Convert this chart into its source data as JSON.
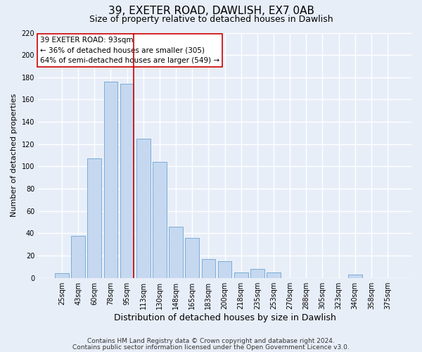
{
  "title": "39, EXETER ROAD, DAWLISH, EX7 0AB",
  "subtitle": "Size of property relative to detached houses in Dawlish",
  "xlabel": "Distribution of detached houses by size in Dawlish",
  "ylabel": "Number of detached properties",
  "bar_labels": [
    "25sqm",
    "43sqm",
    "60sqm",
    "78sqm",
    "95sqm",
    "113sqm",
    "130sqm",
    "148sqm",
    "165sqm",
    "183sqm",
    "200sqm",
    "218sqm",
    "235sqm",
    "253sqm",
    "270sqm",
    "288sqm",
    "305sqm",
    "323sqm",
    "340sqm",
    "358sqm",
    "375sqm"
  ],
  "bar_values": [
    4,
    38,
    107,
    176,
    174,
    125,
    104,
    46,
    36,
    17,
    15,
    5,
    8,
    5,
    0,
    0,
    0,
    0,
    3,
    0,
    0
  ],
  "bar_color": "#c5d8f0",
  "bar_edge_color": "#7aadd6",
  "vline_color": "#cc0000",
  "vline_index": 4,
  "ylim": [
    0,
    220
  ],
  "yticks": [
    0,
    20,
    40,
    60,
    80,
    100,
    120,
    140,
    160,
    180,
    200,
    220
  ],
  "annotation_title": "39 EXETER ROAD: 93sqm",
  "annotation_line1": "← 36% of detached houses are smaller (305)",
  "annotation_line2": "64% of semi-detached houses are larger (549) →",
  "annotation_box_color": "#ffffff",
  "annotation_box_edge": "#cc0000",
  "footer1": "Contains HM Land Registry data © Crown copyright and database right 2024.",
  "footer2": "Contains public sector information licensed under the Open Government Licence v3.0.",
  "bg_color": "#e8eef8",
  "plot_bg_color": "#e8eef8",
  "grid_color": "#ffffff",
  "title_fontsize": 11,
  "subtitle_fontsize": 9,
  "xlabel_fontsize": 9,
  "ylabel_fontsize": 8,
  "tick_fontsize": 7,
  "annotation_fontsize": 7.5,
  "footer_fontsize": 6.5
}
